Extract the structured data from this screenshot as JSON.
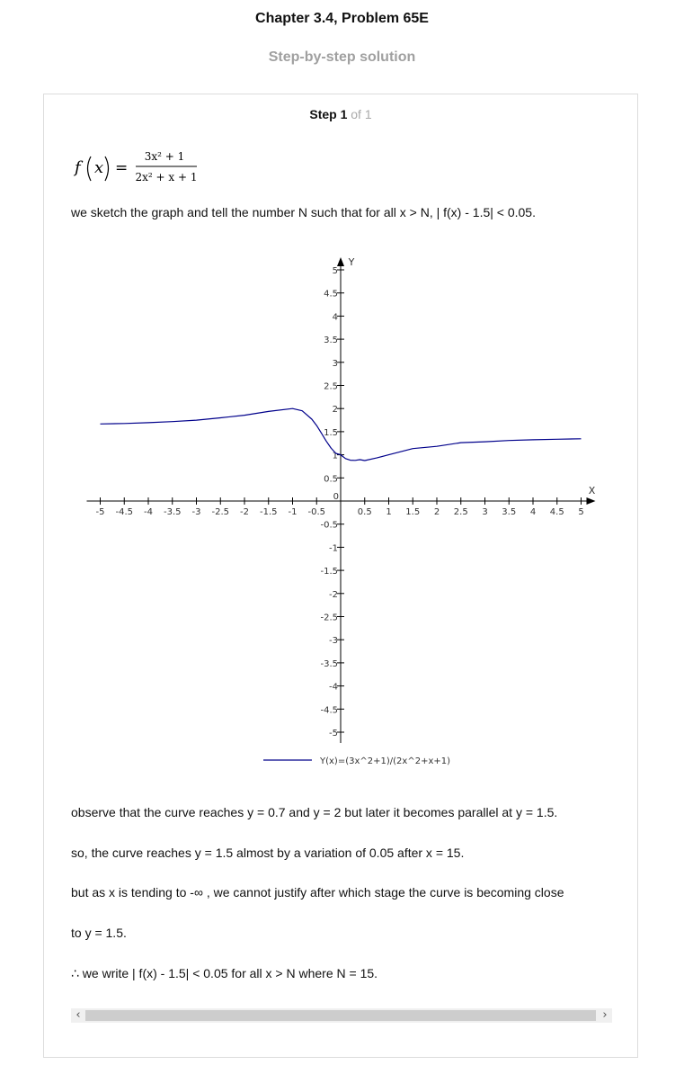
{
  "header": {
    "title": "Chapter 3.4, Problem 65E",
    "subtitle": "Step-by-step solution"
  },
  "step": {
    "label": "Step 1",
    "of_text": "of 1"
  },
  "formula": {
    "lhs_f": "f",
    "lhs_x": "x",
    "equals": "=",
    "numerator": "3x² + 1",
    "denominator": "2x² + x + 1"
  },
  "paragraphs": {
    "p1": "we sketch the graph and tell  the number N such that  for all x > N, | f(x) - 1.5| < 0.05.",
    "p2": "observe that the curve  reaches y = 0.7 and y = 2 but later it becomes parallel at  y = 1.5.",
    "p3": "so, the curve reaches y = 1.5 almost by a variation of 0.05 after x = 15.",
    "p4": "but as x is tending to -∞ , we cannot justify after which stage the curve is becoming close",
    "p5": "to y = 1.5.",
    "p6": "∴ we write  | f(x) - 1.5| < 0.05 for all x > N where N = 15."
  },
  "chart_data": {
    "type": "line",
    "xlabel": "X",
    "ylabel": "Y",
    "xlim": [
      -5,
      5
    ],
    "ylim": [
      -5,
      5
    ],
    "x_ticks": [
      "-5",
      "-4.5",
      "-4",
      "-3.5",
      "-3",
      "-2.5",
      "-2",
      "-1.5",
      "-1",
      "-0.5",
      "0",
      "0.5",
      "1",
      "1.5",
      "2",
      "2.5",
      "3",
      "3.5",
      "4",
      "4.5",
      "5"
    ],
    "y_ticks": [
      "5",
      "4.5",
      "4",
      "3.5",
      "3",
      "2.5",
      "2",
      "1.5",
      "1",
      "0.5",
      "-0.5",
      "-1",
      "-1.5",
      "-2",
      "-2.5",
      "-3",
      "-3.5",
      "-4",
      "-4.5",
      "-5"
    ],
    "series": [
      {
        "name": "Y(x)=(3x^2+1)/(2x^2+x+1)",
        "color": "#00008b",
        "x": [
          -5,
          -4.5,
          -4,
          -3.5,
          -3,
          -2.5,
          -2,
          -1.5,
          -1,
          -0.8,
          -0.6,
          -0.5,
          -0.4,
          -0.3,
          -0.2,
          -0.1,
          0,
          0.1,
          0.2,
          0.3,
          0.4,
          0.5,
          0.75,
          1,
          1.5,
          2,
          2.5,
          3,
          3.5,
          4,
          4.5,
          5
        ],
        "y": [
          1.667,
          1.678,
          1.694,
          1.717,
          1.75,
          1.8,
          1.857,
          1.938,
          2.0,
          1.952,
          1.771,
          1.633,
          1.467,
          1.297,
          1.146,
          1.031,
          1.0,
          0.918,
          0.884,
          0.879,
          0.894,
          0.875,
          0.932,
          1.0,
          1.135,
          1.182,
          1.262,
          1.282,
          1.31,
          1.325,
          1.337,
          1.346
        ]
      }
    ],
    "legend_position": "bottom",
    "grid": false
  },
  "scrollbar": {
    "left_arrow": "‹",
    "right_arrow": "›"
  }
}
